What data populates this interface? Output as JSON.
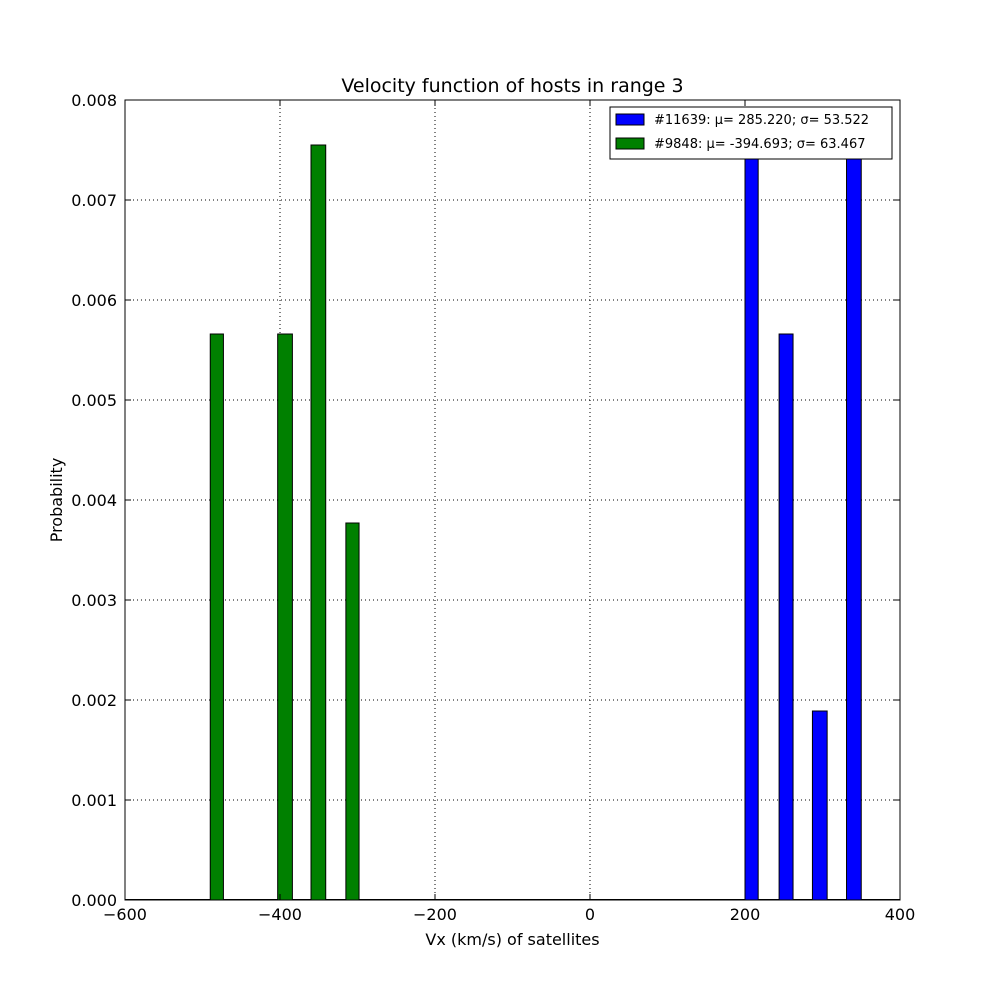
{
  "chart_data": {
    "type": "bar",
    "title": "Velocity function of hosts in range 3",
    "xlabel": "Vx (km/s) of satellites",
    "ylabel": "Probability",
    "xlim": [
      -600,
      400
    ],
    "ylim": [
      0,
      0.008
    ],
    "xticks": [
      "−600",
      "−400",
      "−200",
      "0",
      "200",
      "400"
    ],
    "xtick_values": [
      -600,
      -400,
      -200,
      0,
      200,
      400
    ],
    "yticks": [
      "0.000",
      "0.001",
      "0.002",
      "0.003",
      "0.004",
      "0.005",
      "0.006",
      "0.007",
      "0.008"
    ],
    "ytick_values": [
      0,
      0.001,
      0.002,
      0.003,
      0.004,
      0.005,
      0.006,
      0.007,
      0.008
    ],
    "grid": true,
    "legend_position": "top-right",
    "series": [
      {
        "name": "#11639: μ= 285.220; σ= 53.522",
        "color": "#0000ff",
        "bars": [
          {
            "x0": 200,
            "x1": 217,
            "value": 0.00755
          },
          {
            "x0": 244,
            "x1": 262,
            "value": 0.00566
          },
          {
            "x0": 287,
            "x1": 306,
            "value": 0.00189
          },
          {
            "x0": 331,
            "x1": 350,
            "value": 0.00755
          }
        ]
      },
      {
        "name": "#9848: μ= -394.693; σ= 63.467",
        "color": "#008000",
        "bars": [
          {
            "x0": -490,
            "x1": -473,
            "value": 0.00566
          },
          {
            "x0": -403,
            "x1": -384,
            "value": 0.00566
          },
          {
            "x0": -360,
            "x1": -341,
            "value": 0.00755
          },
          {
            "x0": -315,
            "x1": -298,
            "value": 0.00377
          }
        ]
      }
    ]
  }
}
